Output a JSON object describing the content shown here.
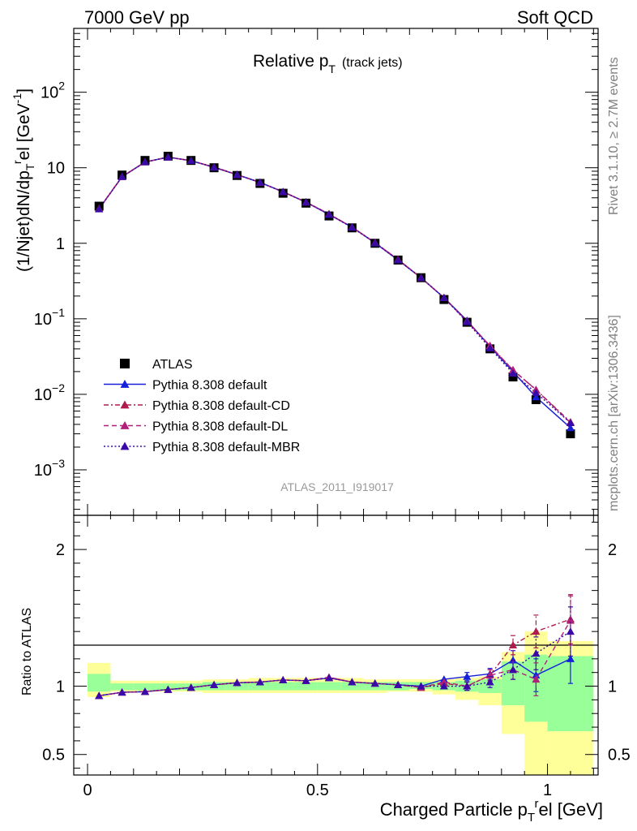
{
  "header": {
    "left": "7000 GeV pp",
    "right": "Soft QCD"
  },
  "side": {
    "rivet": "Rivet 3.1.10, ≥ 2.7M events",
    "source": "mcplots.cern.ch [arXiv:1306.3436]"
  },
  "chart_data": [
    {
      "type": "scatter",
      "title_main": "Relative p",
      "title_sub": "T",
      "title_extra": "(track jets)",
      "ylabel": "(1/Njet)dN/dp_T^rel [GeV^-1]",
      "watermark": "ATLAS_2011_I919017",
      "yscale": "log",
      "ylim": [
        0.00025,
        700
      ],
      "xlim": [
        -0.03,
        1.11
      ],
      "y_ticks": [
        {
          "v": 0.001,
          "base": "10",
          "exp": "−3"
        },
        {
          "v": 0.01,
          "base": "10",
          "exp": "−2"
        },
        {
          "v": 0.1,
          "base": "10",
          "exp": "−1"
        },
        {
          "v": 1,
          "base": "1",
          "exp": ""
        },
        {
          "v": 10,
          "base": "10",
          "exp": ""
        },
        {
          "v": 100,
          "base": "10",
          "exp": "2"
        }
      ],
      "x": [
        0.025,
        0.075,
        0.125,
        0.175,
        0.225,
        0.275,
        0.325,
        0.375,
        0.425,
        0.475,
        0.525,
        0.575,
        0.625,
        0.675,
        0.725,
        0.775,
        0.825,
        0.875,
        0.925,
        0.975,
        1.05
      ],
      "x_bins": [
        [
          0.0,
          0.05
        ],
        [
          0.05,
          0.1
        ],
        [
          0.1,
          0.15
        ],
        [
          0.15,
          0.2
        ],
        [
          0.2,
          0.25
        ],
        [
          0.25,
          0.3
        ],
        [
          0.3,
          0.35
        ],
        [
          0.35,
          0.4
        ],
        [
          0.4,
          0.45
        ],
        [
          0.45,
          0.5
        ],
        [
          0.5,
          0.55
        ],
        [
          0.55,
          0.6
        ],
        [
          0.6,
          0.65
        ],
        [
          0.65,
          0.7
        ],
        [
          0.7,
          0.75
        ],
        [
          0.75,
          0.8
        ],
        [
          0.8,
          0.85
        ],
        [
          0.85,
          0.9
        ],
        [
          0.9,
          0.95
        ],
        [
          0.95,
          1.0
        ],
        [
          1.0,
          1.1
        ]
      ],
      "series": [
        {
          "name": "ATLAS",
          "color": "#000000",
          "style": "data",
          "values": [
            3.1,
            8.0,
            12.5,
            14.2,
            12.5,
            10.0,
            7.9,
            6.2,
            4.6,
            3.4,
            2.3,
            1.6,
            1.0,
            0.6,
            0.35,
            0.18,
            0.09,
            0.04,
            0.017,
            0.0085,
            0.003
          ]
        },
        {
          "name": "Pythia 8.308 default",
          "color": "#1520d8",
          "style": "solid",
          "values": [
            2.85,
            7.6,
            11.9,
            13.8,
            12.4,
            10.1,
            8.1,
            6.4,
            4.8,
            3.5,
            2.4,
            1.64,
            1.01,
            0.6,
            0.35,
            0.19,
            0.095,
            0.043,
            0.02,
            0.0092,
            0.0036
          ]
        },
        {
          "name": "Pythia 8.308 default-CD",
          "color": "#b01a4e",
          "style": "dashdot",
          "values": [
            2.88,
            7.6,
            11.9,
            13.8,
            12.4,
            10.2,
            8.1,
            6.4,
            4.8,
            3.5,
            2.45,
            1.63,
            1.02,
            0.61,
            0.35,
            0.19,
            0.093,
            0.044,
            0.021,
            0.0115,
            0.0043
          ]
        },
        {
          "name": "Pythia 8.308 default-DL",
          "color": "#b0207a",
          "style": "dashed",
          "values": [
            2.86,
            7.6,
            11.9,
            13.8,
            12.4,
            10.2,
            8.1,
            6.4,
            4.8,
            3.5,
            2.44,
            1.63,
            1.02,
            0.61,
            0.35,
            0.19,
            0.092,
            0.044,
            0.021,
            0.0115,
            0.0042
          ]
        },
        {
          "name": "Pythia 8.308 default-MBR",
          "color": "#3a0aa8",
          "style": "dotted",
          "values": [
            2.84,
            7.6,
            11.9,
            13.8,
            12.4,
            10.2,
            8.1,
            6.4,
            4.8,
            3.5,
            2.42,
            1.62,
            1.01,
            0.6,
            0.35,
            0.19,
            0.091,
            0.041,
            0.019,
            0.0105,
            0.0042
          ]
        }
      ]
    },
    {
      "type": "line",
      "ylabel": "Ratio to ATLAS",
      "xlabel": "Charged Particle p_T^rel [GeV]",
      "ylim": [
        0.35,
        2.25
      ],
      "xlim": [
        -0.03,
        1.11
      ],
      "y_ticks": [
        {
          "v": 0.5,
          "label": "0.5"
        },
        {
          "v": 1,
          "label": "1"
        },
        {
          "v": 2,
          "label": "2"
        }
      ],
      "x_ticks": [
        {
          "v": 0,
          "label": "0"
        },
        {
          "v": 0.5,
          "label": "0.5"
        },
        {
          "v": 1,
          "label": "1"
        }
      ],
      "band_outer": [
        [
          0.92,
          1.17
        ],
        [
          0.96,
          1.04
        ],
        [
          0.96,
          1.04
        ],
        [
          0.96,
          1.04
        ],
        [
          0.96,
          1.04
        ],
        [
          0.95,
          1.05
        ],
        [
          0.95,
          1.05
        ],
        [
          0.95,
          1.06
        ],
        [
          0.95,
          1.06
        ],
        [
          0.95,
          1.06
        ],
        [
          0.95,
          1.06
        ],
        [
          0.95,
          1.06
        ],
        [
          0.95,
          1.05
        ],
        [
          0.96,
          1.05
        ],
        [
          0.96,
          1.05
        ],
        [
          0.94,
          1.05
        ],
        [
          0.9,
          1.06
        ],
        [
          0.86,
          1.07
        ],
        [
          0.65,
          1.25
        ],
        [
          0.35,
          1.4
        ],
        [
          0.35,
          1.33
        ]
      ],
      "band_inner": [
        [
          0.96,
          1.09
        ],
        [
          0.97,
          1.02
        ],
        [
          0.97,
          1.02
        ],
        [
          0.97,
          1.02
        ],
        [
          0.97,
          1.02
        ],
        [
          0.97,
          1.03
        ],
        [
          0.97,
          1.03
        ],
        [
          0.97,
          1.03
        ],
        [
          0.97,
          1.03
        ],
        [
          0.97,
          1.03
        ],
        [
          0.97,
          1.03
        ],
        [
          0.97,
          1.03
        ],
        [
          0.97,
          1.03
        ],
        [
          0.97,
          1.03
        ],
        [
          0.98,
          1.03
        ],
        [
          0.97,
          1.03
        ],
        [
          0.96,
          1.04
        ],
        [
          0.95,
          1.05
        ],
        [
          0.86,
          1.18
        ],
        [
          0.74,
          1.23
        ],
        [
          0.67,
          1.22
        ]
      ],
      "series": [
        {
          "name": "Pythia 8.308 default",
          "color": "#1520d8",
          "style": "solid",
          "values": [
            0.93,
            0.955,
            0.96,
            0.975,
            0.99,
            1.01,
            1.025,
            1.03,
            1.045,
            1.04,
            1.06,
            1.03,
            1.02,
            1.01,
            1.0,
            1.05,
            1.07,
            1.09,
            1.19,
            1.08,
            1.2
          ],
          "errors": [
            0.01,
            0.005,
            0.005,
            0.005,
            0.005,
            0.005,
            0.005,
            0.005,
            0.005,
            0.005,
            0.008,
            0.008,
            0.008,
            0.01,
            0.01,
            0.015,
            0.03,
            0.04,
            0.07,
            0.12,
            0.18
          ]
        },
        {
          "name": "Pythia 8.308 default-CD",
          "color": "#b01a4e",
          "style": "dashdot",
          "values": [
            0.93,
            0.955,
            0.96,
            0.975,
            0.99,
            1.01,
            1.025,
            1.03,
            1.045,
            1.04,
            1.065,
            1.03,
            1.02,
            1.01,
            0.99,
            1.02,
            1.0,
            1.08,
            1.3,
            1.4,
            1.49
          ],
          "errors": [
            0.01,
            0.005,
            0.005,
            0.005,
            0.005,
            0.005,
            0.005,
            0.005,
            0.005,
            0.005,
            0.008,
            0.008,
            0.008,
            0.01,
            0.01,
            0.015,
            0.03,
            0.04,
            0.07,
            0.12,
            0.18
          ]
        },
        {
          "name": "Pythia 8.308 default-DL",
          "color": "#b0207a",
          "style": "dashed",
          "values": [
            0.93,
            0.955,
            0.96,
            0.975,
            0.99,
            1.01,
            1.025,
            1.03,
            1.045,
            1.04,
            1.065,
            1.03,
            1.02,
            1.01,
            0.99,
            1.03,
            1.0,
            1.08,
            1.12,
            1.05,
            1.48
          ],
          "errors": [
            0.01,
            0.005,
            0.005,
            0.005,
            0.005,
            0.005,
            0.005,
            0.005,
            0.005,
            0.005,
            0.008,
            0.008,
            0.008,
            0.01,
            0.01,
            0.015,
            0.03,
            0.04,
            0.07,
            0.12,
            0.18
          ]
        },
        {
          "name": "Pythia 8.308 default-MBR",
          "color": "#3a0aa8",
          "style": "dotted",
          "values": [
            0.93,
            0.955,
            0.96,
            0.975,
            0.99,
            1.01,
            1.025,
            1.03,
            1.045,
            1.04,
            1.06,
            1.03,
            1.02,
            1.01,
            1.0,
            1.0,
            1.0,
            1.03,
            1.12,
            1.24,
            1.4
          ],
          "errors": [
            0.01,
            0.005,
            0.005,
            0.005,
            0.005,
            0.005,
            0.005,
            0.005,
            0.005,
            0.005,
            0.008,
            0.008,
            0.008,
            0.01,
            0.01,
            0.015,
            0.03,
            0.04,
            0.07,
            0.12,
            0.18
          ]
        }
      ]
    }
  ],
  "colors": {
    "band_outer": "#ffff99",
    "band_inner": "#99ff99",
    "side_text": "#808080",
    "watermark": "#999999"
  }
}
